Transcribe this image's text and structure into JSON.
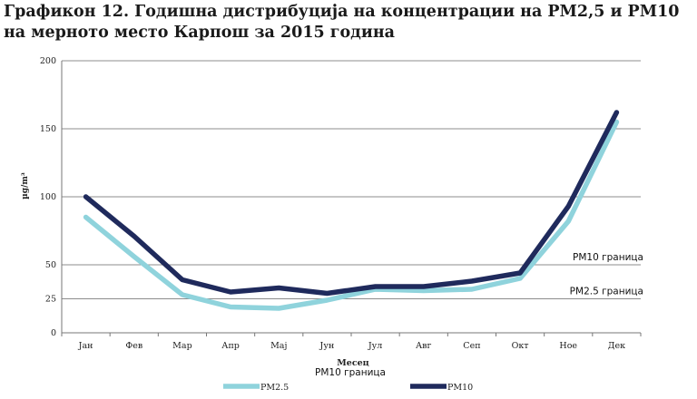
{
  "title": "Графикон 12. Годишна дистрибуција на концентрации на РМ2,5 и РМ10 на мерното место Карпош за 2015 година",
  "chart_data": {
    "type": "line",
    "title": "Графикон 12. Годишна дистрибуција на концентрации на РМ2,5 и РМ10 на мерното место Карпош за 2015 година",
    "xlabel": "Месец",
    "ylabel": "µg/m³",
    "categories": [
      "Јан",
      "Фев",
      "Мар",
      "Апр",
      "Мај",
      "Јун",
      "Јул",
      "Авг",
      "Сеп",
      "Окт",
      "Ное",
      "Дек"
    ],
    "ylim": [
      0,
      200
    ],
    "yticks": [
      0,
      25,
      50,
      100,
      150,
      200
    ],
    "grid": true,
    "series": [
      {
        "name": "PM2.5",
        "color": "#8fd3dc",
        "values": [
          85,
          56,
          28,
          19,
          18,
          24,
          32,
          31,
          32,
          40,
          82,
          155
        ]
      },
      {
        "name": "PM10",
        "color": "#1f2a5c",
        "values": [
          100,
          71,
          39,
          30,
          33,
          29,
          34,
          34,
          38,
          44,
          93,
          162
        ]
      }
    ],
    "reference_lines": [
      {
        "label": "PM10 граница",
        "value": 50
      },
      {
        "label": "PM2.5 граница",
        "value": 25
      }
    ],
    "legend_placement": "bottom",
    "legend_title": "PM10 граница"
  }
}
